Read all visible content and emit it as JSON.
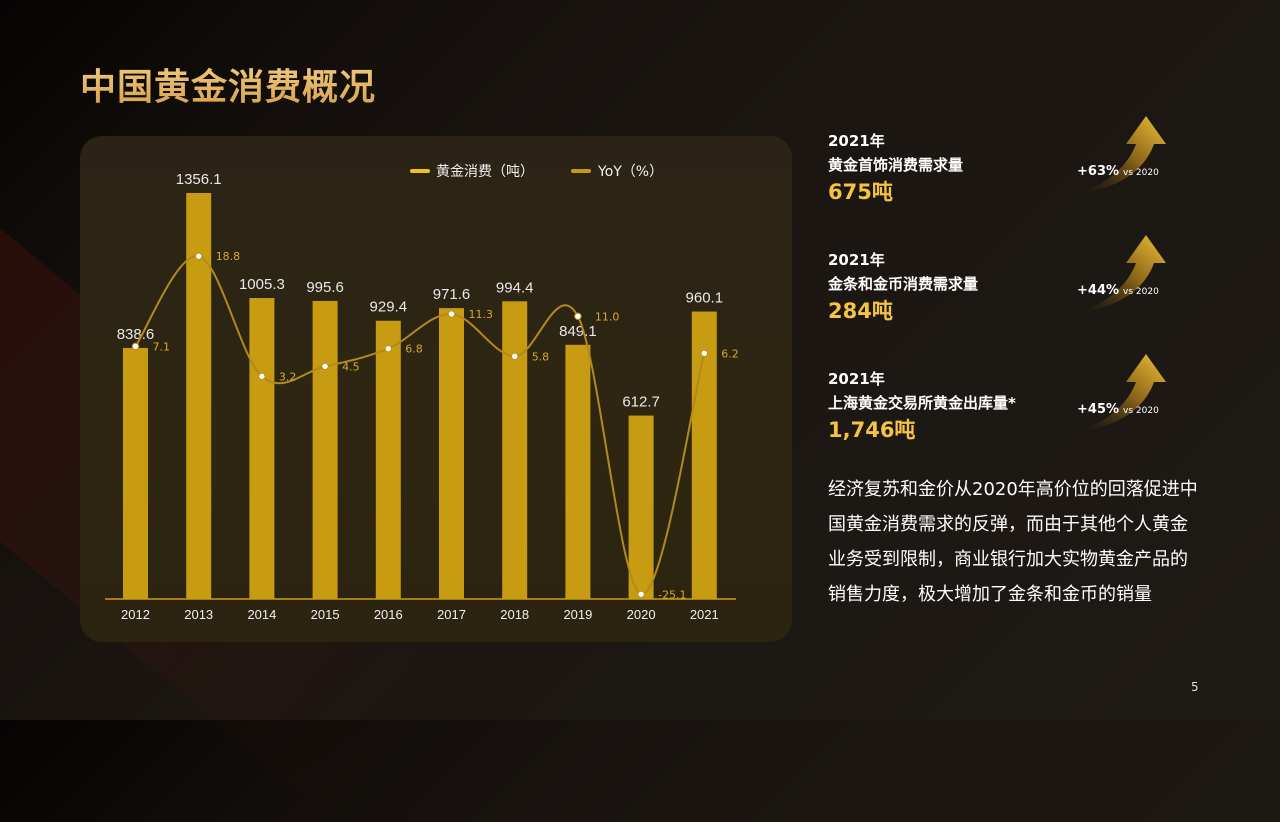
{
  "title": "中国黄金消费概况",
  "page_number": "5",
  "colors": {
    "gold_bar": "#c79b12",
    "accent_value": "#f5c242",
    "title_gold": "#e7b563"
  },
  "legend": {
    "bar_series": "黄金消费（吨）",
    "line_series": "YoY（%）"
  },
  "chart_data": {
    "type": "bar",
    "categories": [
      "2012",
      "2013",
      "2014",
      "2015",
      "2016",
      "2017",
      "2018",
      "2019",
      "2020",
      "2021"
    ],
    "series": [
      {
        "name": "黄金消费（吨）",
        "type": "bar",
        "values": [
          838.6,
          1356.1,
          1005.3,
          995.6,
          929.4,
          971.6,
          994.4,
          849.1,
          612.7,
          960.1
        ]
      },
      {
        "name": "YoY（%）",
        "type": "line",
        "values": [
          7.1,
          18.8,
          3.2,
          4.5,
          6.8,
          11.3,
          5.8,
          11.0,
          -25.1,
          6.2
        ]
      }
    ],
    "bar_labels": [
      "838.6",
      "1356.1",
      "1005.3",
      "995.6",
      "929.4",
      "971.6",
      "994.4",
      "849.1",
      "612.7",
      "960.1"
    ],
    "line_labels": [
      "7.1",
      "18.8",
      "3.2",
      "4.5",
      "6.8",
      "11.3",
      "5.8",
      "11.0",
      "-25.1",
      "6.2"
    ],
    "grid": false,
    "legend_position": "top"
  },
  "stats": [
    {
      "year": "2021年",
      "label": "黄金首饰消费需求量",
      "value": "675吨",
      "change": "+63%",
      "vs": "vs 2020"
    },
    {
      "year": "2021年",
      "label": "金条和金币消费需求量",
      "value": "284吨",
      "change": "+44%",
      "vs": "vs 2020"
    },
    {
      "year": "2021年",
      "label": "上海黄金交易所黄金出库量*",
      "value": "1,746吨",
      "change": "+45%",
      "vs": "vs 2020"
    }
  ],
  "summary": "经济复苏和金价从2020年高价位的回落促进中国黄金消费需求的反弹，而由于其他个人黄金业务受到限制，商业银行加大实物黄金产品的销售力度，极大增加了金条和金币的销量"
}
